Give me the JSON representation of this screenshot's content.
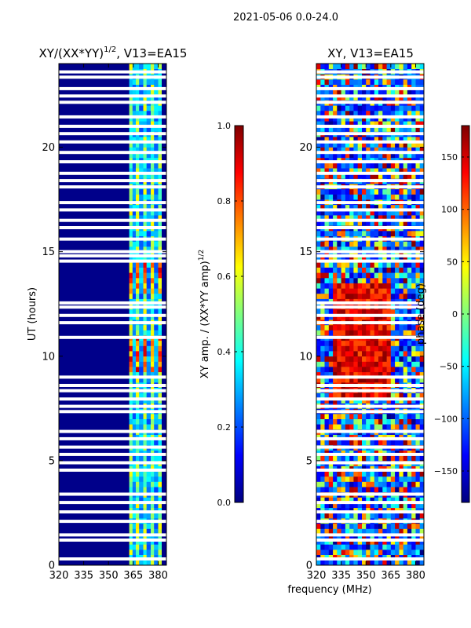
{
  "figure": {
    "suptitle": "2021-05-06 0.0-24.0",
    "xlabel": "frequency (MHz)"
  },
  "chart_data": [
    {
      "type": "heatmap",
      "id": "amp",
      "title_main": "XY/(XX*YY)",
      "title_sup": "1/2",
      "title_tail": ", V13=EA15",
      "xlabel": "",
      "ylabel": "UT (hours)",
      "xlim": [
        320,
        385
      ],
      "ylim": [
        0,
        24
      ],
      "xticks": [
        320,
        335,
        350,
        365,
        380
      ],
      "yticks": [
        0,
        5,
        10,
        15,
        20
      ],
      "colormap": "jet",
      "colorbar": {
        "label_main": "XY amp. / (XX*YY amp)",
        "label_sup": "1/2",
        "range": [
          0.0,
          1.0
        ],
        "ticks": [
          "0.0",
          "0.2",
          "0.4",
          "0.6",
          "0.8",
          "1.0"
        ]
      },
      "description": "Mostly low (~0.05) except channels 362-382 MHz showing banded values 0.3-0.7, peaking near 0.9 around UT 9.5-11 and 13-14.5 h"
    },
    {
      "type": "heatmap",
      "id": "phase",
      "title_main": "XY, V13=EA15",
      "xlabel": "",
      "ylabel": "",
      "xlim": [
        320,
        385
      ],
      "ylim": [
        0,
        24
      ],
      "xticks": [
        320,
        335,
        350,
        365,
        380
      ],
      "yticks": [
        0,
        5,
        10,
        15,
        20
      ],
      "colormap": "jet",
      "colorbar": {
        "label_main": "phase (deg)",
        "range": [
          -180,
          180
        ],
        "ticks": [
          "-150",
          "-100",
          "-50",
          "0",
          "50",
          "100",
          "150"
        ]
      },
      "description": "Noisy phase, values spanning -180 to 180 deg, predominantly red (+120 to +180) around UT 8-13 h between 330 and 365 MHz"
    }
  ],
  "flagged_ut_hours": [
    0.3,
    1.2,
    1.45,
    2.1,
    2.55,
    3.0,
    3.4,
    4.55,
    4.9,
    5.3,
    5.65,
    6.05,
    6.4,
    7.35,
    7.6,
    7.95,
    8.35,
    8.6,
    9.0,
    10.9,
    11.6,
    11.95,
    12.35,
    12.55,
    14.55,
    14.8,
    15.0,
    15.6,
    16.15,
    16.5,
    17.0,
    17.35,
    18.1,
    18.4,
    18.75,
    19.3,
    19.75,
    20.25,
    20.65,
    21.0,
    21.45,
    22.15,
    22.45,
    22.8,
    23.35,
    23.6
  ]
}
